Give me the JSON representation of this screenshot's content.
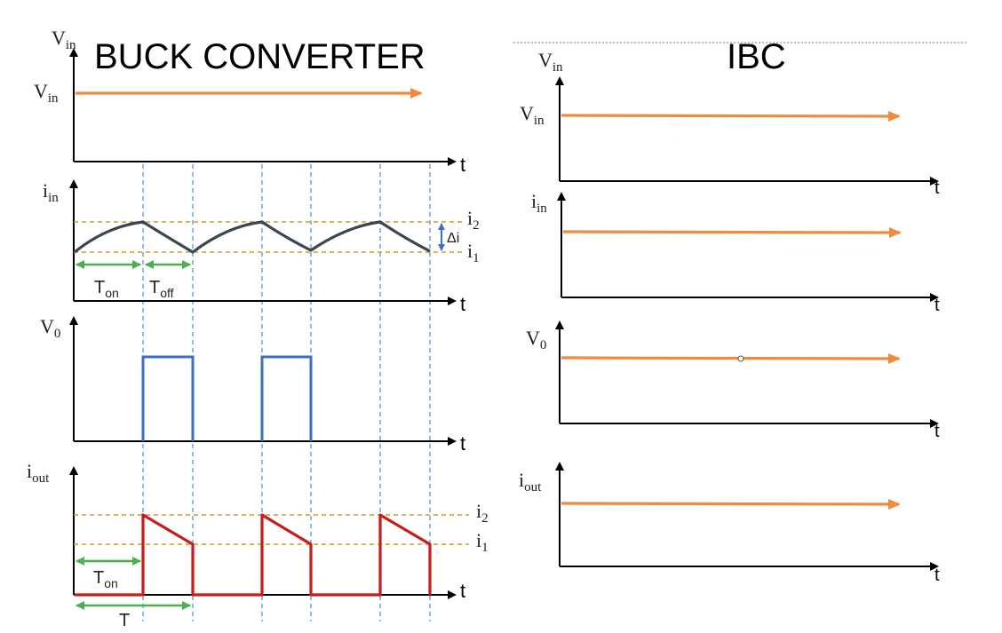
{
  "titles": {
    "left": "BUCK CONVERTER",
    "right": "IBC"
  },
  "left": {
    "vin_axis": {
      "main": "V",
      "sub": "in"
    },
    "vin_level": {
      "main": "V",
      "sub": "in"
    },
    "iin_axis": {
      "main": "i",
      "sub": "in"
    },
    "v0_axis": {
      "main": "V",
      "sub": "0"
    },
    "iout_axis": {
      "main": "i",
      "sub": "out"
    },
    "i2": {
      "main": "i",
      "sub": "2"
    },
    "i1": {
      "main": "i",
      "sub": "1"
    },
    "i2_out": {
      "main": "i",
      "sub": "2"
    },
    "i1_out": {
      "main": "i",
      "sub": "1"
    },
    "delta_i": "Δi",
    "t_on": {
      "main": "T",
      "sub": "on"
    },
    "t_off": {
      "main": "T",
      "sub": "off"
    },
    "t_on_out": {
      "main": "T",
      "sub": "on"
    },
    "period": "T",
    "t_label": "t"
  },
  "right": {
    "vin_axis": {
      "main": "V",
      "sub": "in"
    },
    "vin_level": {
      "main": "V",
      "sub": "in"
    },
    "iin_axis": {
      "main": "i",
      "sub": "in"
    },
    "v0_axis": {
      "main": "V",
      "sub": "0"
    },
    "iout_axis": {
      "main": "i",
      "sub": "out"
    },
    "t_label": "t"
  },
  "colors": {
    "orange": "#f08a3e",
    "iin_wave": "#3a4652",
    "vo_wave": "#3d6ec9",
    "iout_wave": "#c61c1c",
    "green": "#4caf50",
    "gold_dash": "#c9a227",
    "blue_dash": "#4a90d9"
  }
}
